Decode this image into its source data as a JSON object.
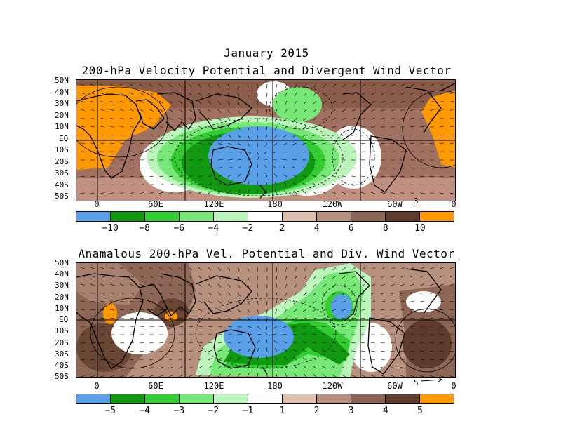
{
  "title": "January 2015",
  "panels": [
    {
      "title": "200-hPa Velocity Potential and Divergent Wind Vector",
      "y_labels": [
        "50N",
        "40N",
        "30N",
        "20N",
        "10N",
        "EQ",
        "10S",
        "20S",
        "30S",
        "40S",
        "50S"
      ],
      "x_labels": [
        "0",
        "60E",
        "120E",
        "180",
        "120W",
        "60W",
        "0"
      ],
      "vector_ref": "3",
      "colorbar": {
        "colors": [
          "#5aa0e8",
          "#119911",
          "#33cc33",
          "#77e877",
          "#bbf5bb",
          "#ffffff",
          "#dfbfb0",
          "#b8907e",
          "#8e6655",
          "#5e3c2c",
          "#ff9900"
        ],
        "labels": [
          "−10",
          "−8",
          "−6",
          "−4",
          "−2",
          "2",
          "4",
          "6",
          "8",
          "10"
        ]
      }
    },
    {
      "title": "Anamalous 200-hPa Vel. Potential and Div. Wind Vector",
      "y_labels": [
        "50N",
        "40N",
        "30N",
        "20N",
        "10N",
        "EQ",
        "10S",
        "20S",
        "30S",
        "40S",
        "50S"
      ],
      "x_labels": [
        "0",
        "60E",
        "120E",
        "180",
        "120W",
        "60W",
        "0"
      ],
      "vector_ref": "5",
      "colorbar": {
        "colors": [
          "#5aa0e8",
          "#119911",
          "#33cc33",
          "#77e877",
          "#bbf5bb",
          "#ffffff",
          "#dfbfb0",
          "#b8907e",
          "#8e6655",
          "#5e3c2c",
          "#ff9900"
        ],
        "labels": [
          "−5",
          "−4",
          "−3",
          "−2",
          "−1",
          "1",
          "2",
          "3",
          "4",
          "5"
        ]
      }
    }
  ]
}
